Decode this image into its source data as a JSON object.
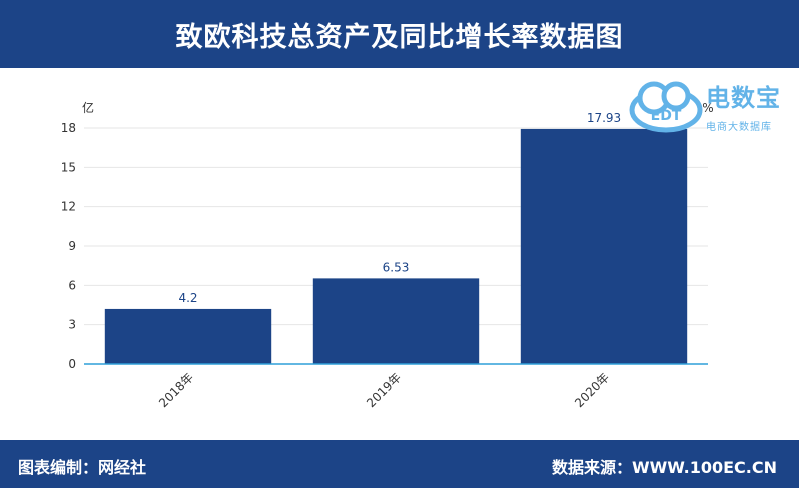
{
  "header": {
    "title": "致欧科技总资产及同比增长率数据图"
  },
  "footer": {
    "left": "图表编制：网经社",
    "right": "数据来源：WWW.100EC.CN"
  },
  "watermark": {
    "brand": "电数宝",
    "subtitle": "电商大数据库",
    "logo_text": "EDT"
  },
  "colors": {
    "header_bg": "#1c4487",
    "bar": "#1c4487",
    "axis": "#2f9fd8"
  },
  "chart_data": {
    "type": "bar",
    "categories": [
      "2018年",
      "2019年",
      "2020年"
    ],
    "values": [
      4.2,
      6.53,
      17.93
    ],
    "value_labels": [
      "4.2",
      "6.53",
      "17.93"
    ],
    "ylabel": "亿",
    "y2label": "%",
    "ylim": [
      0,
      18
    ],
    "yticks": [
      0,
      3,
      6,
      9,
      12,
      15,
      18
    ],
    "grid": true,
    "legend": "none"
  }
}
